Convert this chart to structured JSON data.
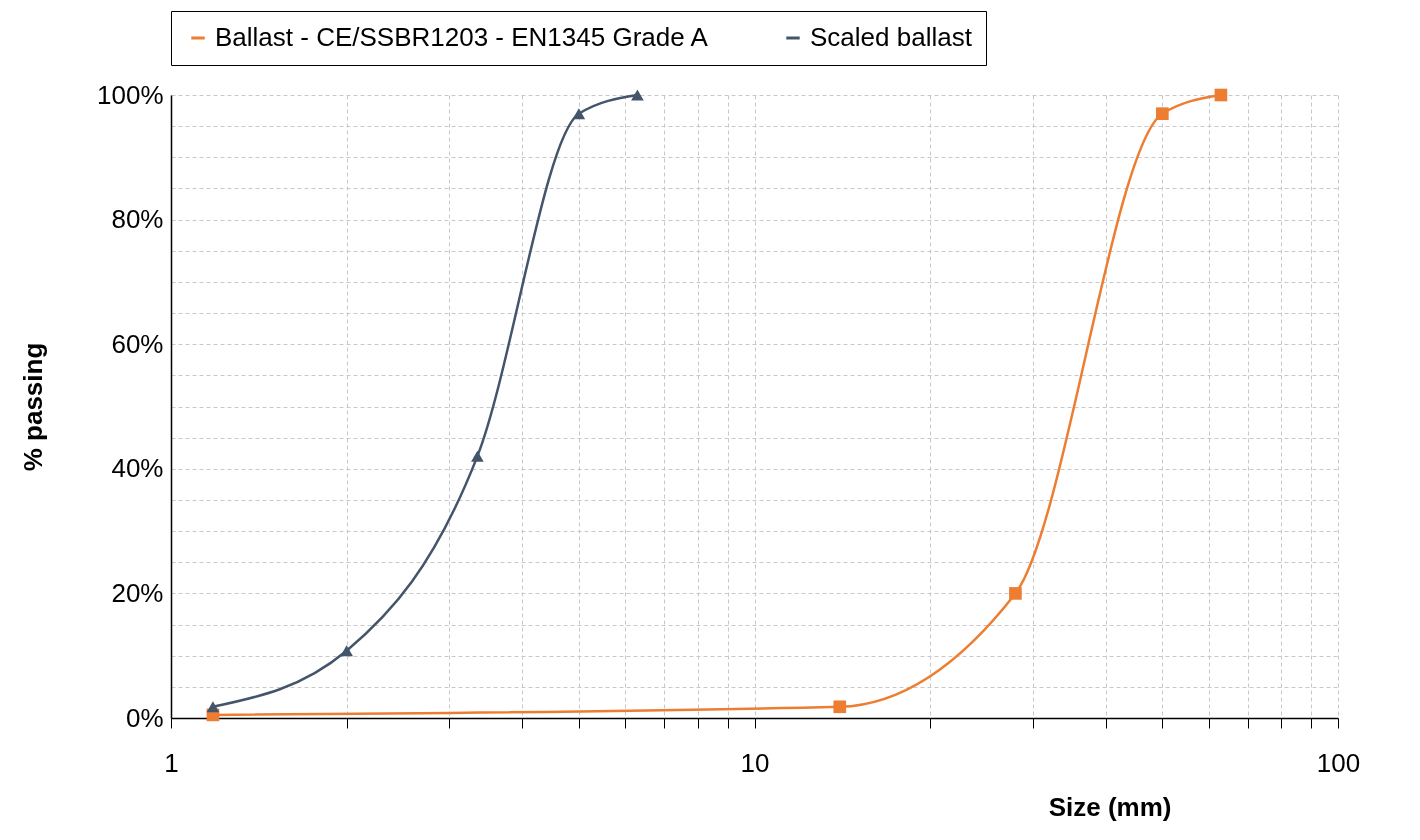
{
  "chart_data": {
    "type": "line",
    "xlabel": "Size (mm)",
    "ylabel": "% passing",
    "log": "x",
    "xlim": [
      1,
      100
    ],
    "ylim": [
      0,
      100
    ],
    "xticks": [
      1,
      {
        "value": 2,
        "label": null
      },
      {
        "value": 3,
        "label": null
      },
      {
        "value": 4,
        "label": null
      },
      {
        "value": 5,
        "label": null
      },
      {
        "value": 6,
        "label": null
      },
      {
        "value": 7,
        "label": null
      },
      {
        "value": 8,
        "label": null
      },
      {
        "value": 9,
        "label": null
      },
      10,
      {
        "value": 20,
        "label": null
      },
      {
        "value": 30,
        "label": null
      },
      {
        "value": 40,
        "label": null
      },
      {
        "value": 50,
        "label": null
      },
      {
        "value": 60,
        "label": null
      },
      {
        "value": 70,
        "label": null
      },
      {
        "value": 80,
        "label": null
      },
      {
        "value": 90,
        "label": null
      },
      100
    ],
    "yticks": [
      {
        "value": 0,
        "label": "0%"
      },
      {
        "value": 5,
        "label": null
      },
      {
        "value": 10,
        "label": null
      },
      {
        "value": 15,
        "label": null
      },
      {
        "value": 20,
        "label": "20%"
      },
      {
        "value": 25,
        "label": null
      },
      {
        "value": 30,
        "label": null
      },
      {
        "value": 35,
        "label": null
      },
      {
        "value": 40,
        "label": "40%"
      },
      {
        "value": 45,
        "label": null
      },
      {
        "value": 50,
        "label": null
      },
      {
        "value": 55,
        "label": null
      },
      {
        "value": 60,
        "label": "60%"
      },
      {
        "value": 65,
        "label": null
      },
      {
        "value": 70,
        "label": null
      },
      {
        "value": 75,
        "label": null
      },
      {
        "value": 80,
        "label": "80%"
      },
      {
        "value": 85,
        "label": null
      },
      {
        "value": 90,
        "label": null
      },
      {
        "value": 95,
        "label": null
      },
      {
        "value": 100,
        "label": "100%"
      }
    ],
    "grid": true,
    "legend": "top",
    "line_style": "solid",
    "series": [
      {
        "name": "Ballast - CE/SSBR1203 - EN1345 Grade A",
        "color": "#ed7d31",
        "marker": "square",
        "x": [
          1.18,
          14,
          28,
          50,
          63
        ],
        "values": [
          0.5,
          1.8,
          20,
          97,
          100
        ]
      },
      {
        "name": "Scaled ballast",
        "color": "#44546a",
        "marker": "triangle",
        "x": [
          1.18,
          2,
          3.35,
          5,
          6.3
        ],
        "values": [
          1.8,
          10.8,
          42,
          97,
          100
        ]
      }
    ]
  }
}
